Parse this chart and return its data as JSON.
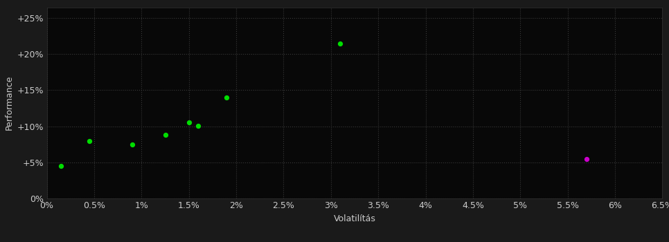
{
  "green_points": [
    [
      0.0015,
      0.045
    ],
    [
      0.0045,
      0.08
    ],
    [
      0.009,
      0.075
    ],
    [
      0.0125,
      0.088
    ],
    [
      0.015,
      0.105
    ],
    [
      0.016,
      0.101
    ],
    [
      0.019,
      0.14
    ],
    [
      0.031,
      0.215
    ]
  ],
  "magenta_points": [
    [
      0.057,
      0.055
    ]
  ],
  "green_color": "#00dd00",
  "magenta_color": "#cc00cc",
  "bg_color": "#1a1a1a",
  "plot_bg_color": "#080808",
  "grid_color": "#3a3a3a",
  "text_color": "#cccccc",
  "xlabel": "Volatilítás",
  "ylabel": "Performance",
  "xlim": [
    0.0,
    0.065
  ],
  "ylim": [
    0.0,
    0.265
  ],
  "xticks": [
    0.0,
    0.005,
    0.01,
    0.015,
    0.02,
    0.025,
    0.03,
    0.035,
    0.04,
    0.045,
    0.05,
    0.055,
    0.06,
    0.065
  ],
  "yticks": [
    0.0,
    0.05,
    0.1,
    0.15,
    0.2,
    0.25
  ],
  "ytick_labels": [
    "0%",
    "+5%",
    "+10%",
    "+15%",
    "+20%",
    "+25%"
  ],
  "xtick_labels": [
    "0%",
    "0.5%",
    "1%",
    "1.5%",
    "2%",
    "2.5%",
    "3%",
    "3.5%",
    "4%",
    "4.5%",
    "5%",
    "5.5%",
    "6%",
    "6.5%"
  ],
  "marker_size": 18,
  "marker": "o",
  "font_size_ticks": 9,
  "font_size_label": 9
}
